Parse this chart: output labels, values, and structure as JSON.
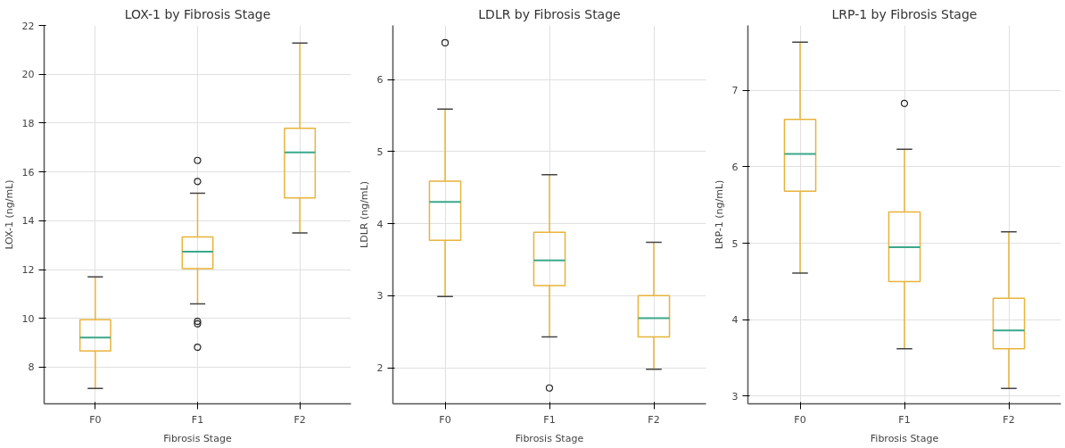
{
  "chart_data": [
    {
      "type": "box",
      "title": "LOX-1 by Fibrosis Stage",
      "xlabel": "Fibrosis Stage",
      "ylabel": "LOX-1 (ng/mL)",
      "categories": [
        "F0",
        "F1",
        "F2"
      ],
      "ylim": [
        6.5,
        22
      ],
      "yticks": [
        8,
        10,
        12,
        14,
        16,
        18,
        20,
        22
      ],
      "grid": true,
      "series": [
        {
          "color": "#e8b33a",
          "boxes": [
            {
              "low": 7.13,
              "q1": 8.67,
              "median": 9.21,
              "q3": 9.95,
              "high": 11.7
            },
            {
              "low": 10.59,
              "q1": 12.04,
              "median": 12.73,
              "q3": 13.34,
              "high": 15.13,
              "outliers": [
                16.47,
                15.61,
                9.88,
                9.78,
                8.82
              ]
            },
            {
              "low": 13.5,
              "q1": 14.94,
              "median": 16.8,
              "q3": 17.79,
              "high": 21.28
            }
          ]
        }
      ]
    },
    {
      "type": "box",
      "title": "LDLR by Fibrosis Stage",
      "xlabel": "Fibrosis Stage",
      "ylabel": "LDLR (ng/mL)",
      "categories": [
        "F0",
        "F1",
        "F2"
      ],
      "ylim": [
        1.5,
        6.75
      ],
      "yticks": [
        2,
        3,
        4,
        5,
        6
      ],
      "grid": true,
      "series": [
        {
          "color": "#e8b33a",
          "boxes": [
            {
              "low": 2.99,
              "q1": 3.77,
              "median": 4.3,
              "q3": 4.59,
              "high": 5.59,
              "outliers": [
                6.51
              ]
            },
            {
              "low": 2.43,
              "q1": 3.14,
              "median": 3.49,
              "q3": 3.88,
              "high": 4.68,
              "outliers": [
                1.72
              ]
            },
            {
              "low": 1.98,
              "q1": 2.43,
              "median": 2.69,
              "q3": 3.0,
              "high": 3.74
            }
          ]
        }
      ]
    },
    {
      "type": "box",
      "title": "LRP-1 by Fibrosis Stage",
      "xlabel": "Fibrosis Stage",
      "ylabel": "LRP-1 (ng/mL)",
      "categories": [
        "F0",
        "F1",
        "F2"
      ],
      "ylim": [
        2.9,
        7.85
      ],
      "yticks": [
        3,
        4,
        5,
        6,
        7
      ],
      "grid": true,
      "series": [
        {
          "color": "#e8b33a",
          "boxes": [
            {
              "low": 4.61,
              "q1": 5.68,
              "median": 6.17,
              "q3": 6.62,
              "high": 7.63
            },
            {
              "low": 3.62,
              "q1": 4.5,
              "median": 4.95,
              "q3": 5.41,
              "high": 6.23,
              "outliers": [
                6.83
              ]
            },
            {
              "low": 3.1,
              "q1": 3.62,
              "median": 3.86,
              "q3": 4.28,
              "high": 5.15
            }
          ]
        }
      ]
    }
  ]
}
